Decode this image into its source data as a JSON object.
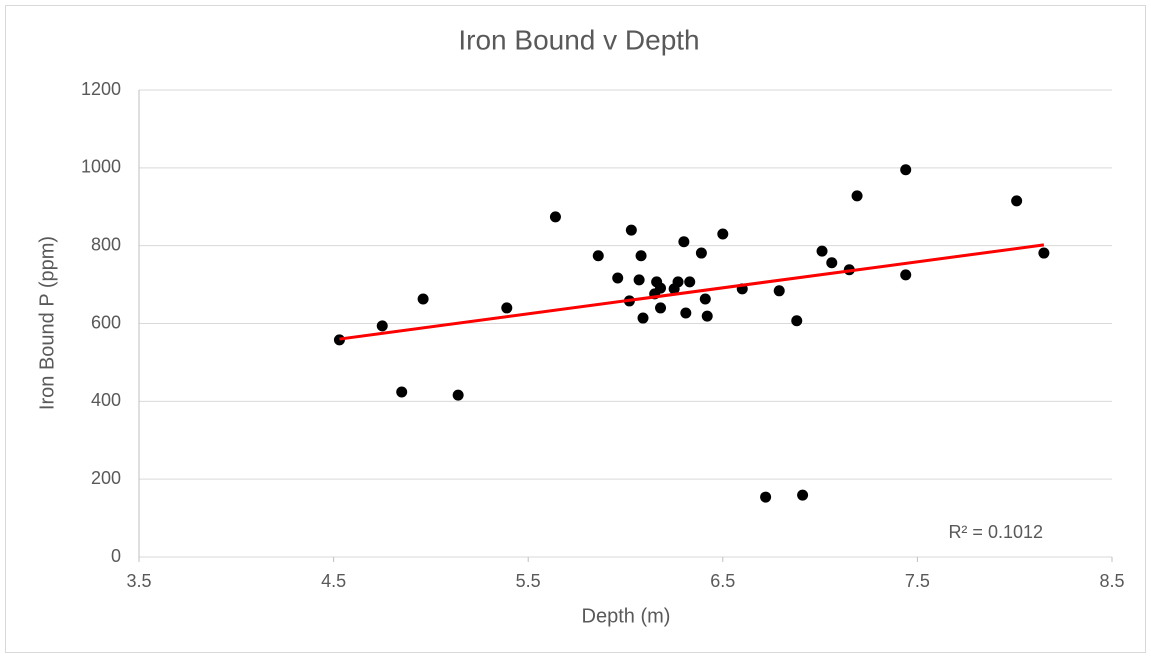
{
  "chart_data": {
    "type": "scatter",
    "title": "Iron Bound v Depth",
    "x_label": "Depth (m)",
    "y_label": "Iron Bound P (ppm)",
    "annotation": "R² = 0.1012",
    "xlim": [
      3.5,
      8.5
    ],
    "xticks": [
      3.5,
      4.5,
      5.5,
      6.5,
      7.5,
      8.5
    ],
    "ylim": [
      0,
      1200
    ],
    "yticks": [
      0,
      200,
      400,
      600,
      800,
      1000,
      1200
    ],
    "grid": true,
    "color": "#000000",
    "x": [
      4.53,
      4.75,
      4.85,
      4.96,
      5.14,
      5.39,
      5.64,
      5.86,
      5.96,
      6.02,
      6.03,
      6.07,
      6.08,
      6.09,
      6.15,
      6.16,
      6.18,
      6.18,
      6.25,
      6.27,
      6.3,
      6.31,
      6.33,
      6.39,
      6.41,
      6.42,
      6.5,
      6.6,
      6.72,
      6.79,
      6.88,
      6.91,
      7.01,
      7.06,
      7.15,
      7.19,
      7.44,
      7.44,
      8.01,
      8.15
    ],
    "values": [
      558,
      594,
      424,
      663,
      416,
      640,
      874,
      774,
      717,
      658,
      840,
      712,
      774,
      614,
      676,
      707,
      691,
      640,
      689,
      707,
      810,
      627,
      707,
      781,
      663,
      619,
      830,
      689,
      154,
      684,
      607,
      159,
      786,
      756,
      738,
      928,
      995,
      725,
      915,
      781
    ],
    "trendline": {
      "color": "#ff0000",
      "x": [
        4.53,
        8.15
      ],
      "values": [
        560,
        802
      ]
    }
  }
}
